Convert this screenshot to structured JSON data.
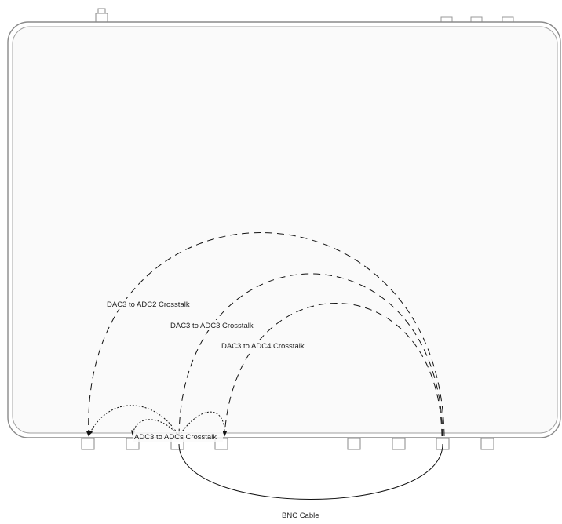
{
  "diagram": {
    "labels": {
      "dac3_adc2": "DAC3 to ADC2 Crosstalk",
      "dac3_adc3": "DAC3 to ADC3 Crosstalk",
      "dac3_adc4": "DAC3 to ADC4 Crosstalk",
      "adc3_adcs": "ADC3 to ADCs Crosstalk",
      "bnc_cable": "BNC Cable"
    },
    "colors": {
      "device_outline": "#8a8a8a",
      "lines": "#111111",
      "background": "#ffffff"
    }
  }
}
